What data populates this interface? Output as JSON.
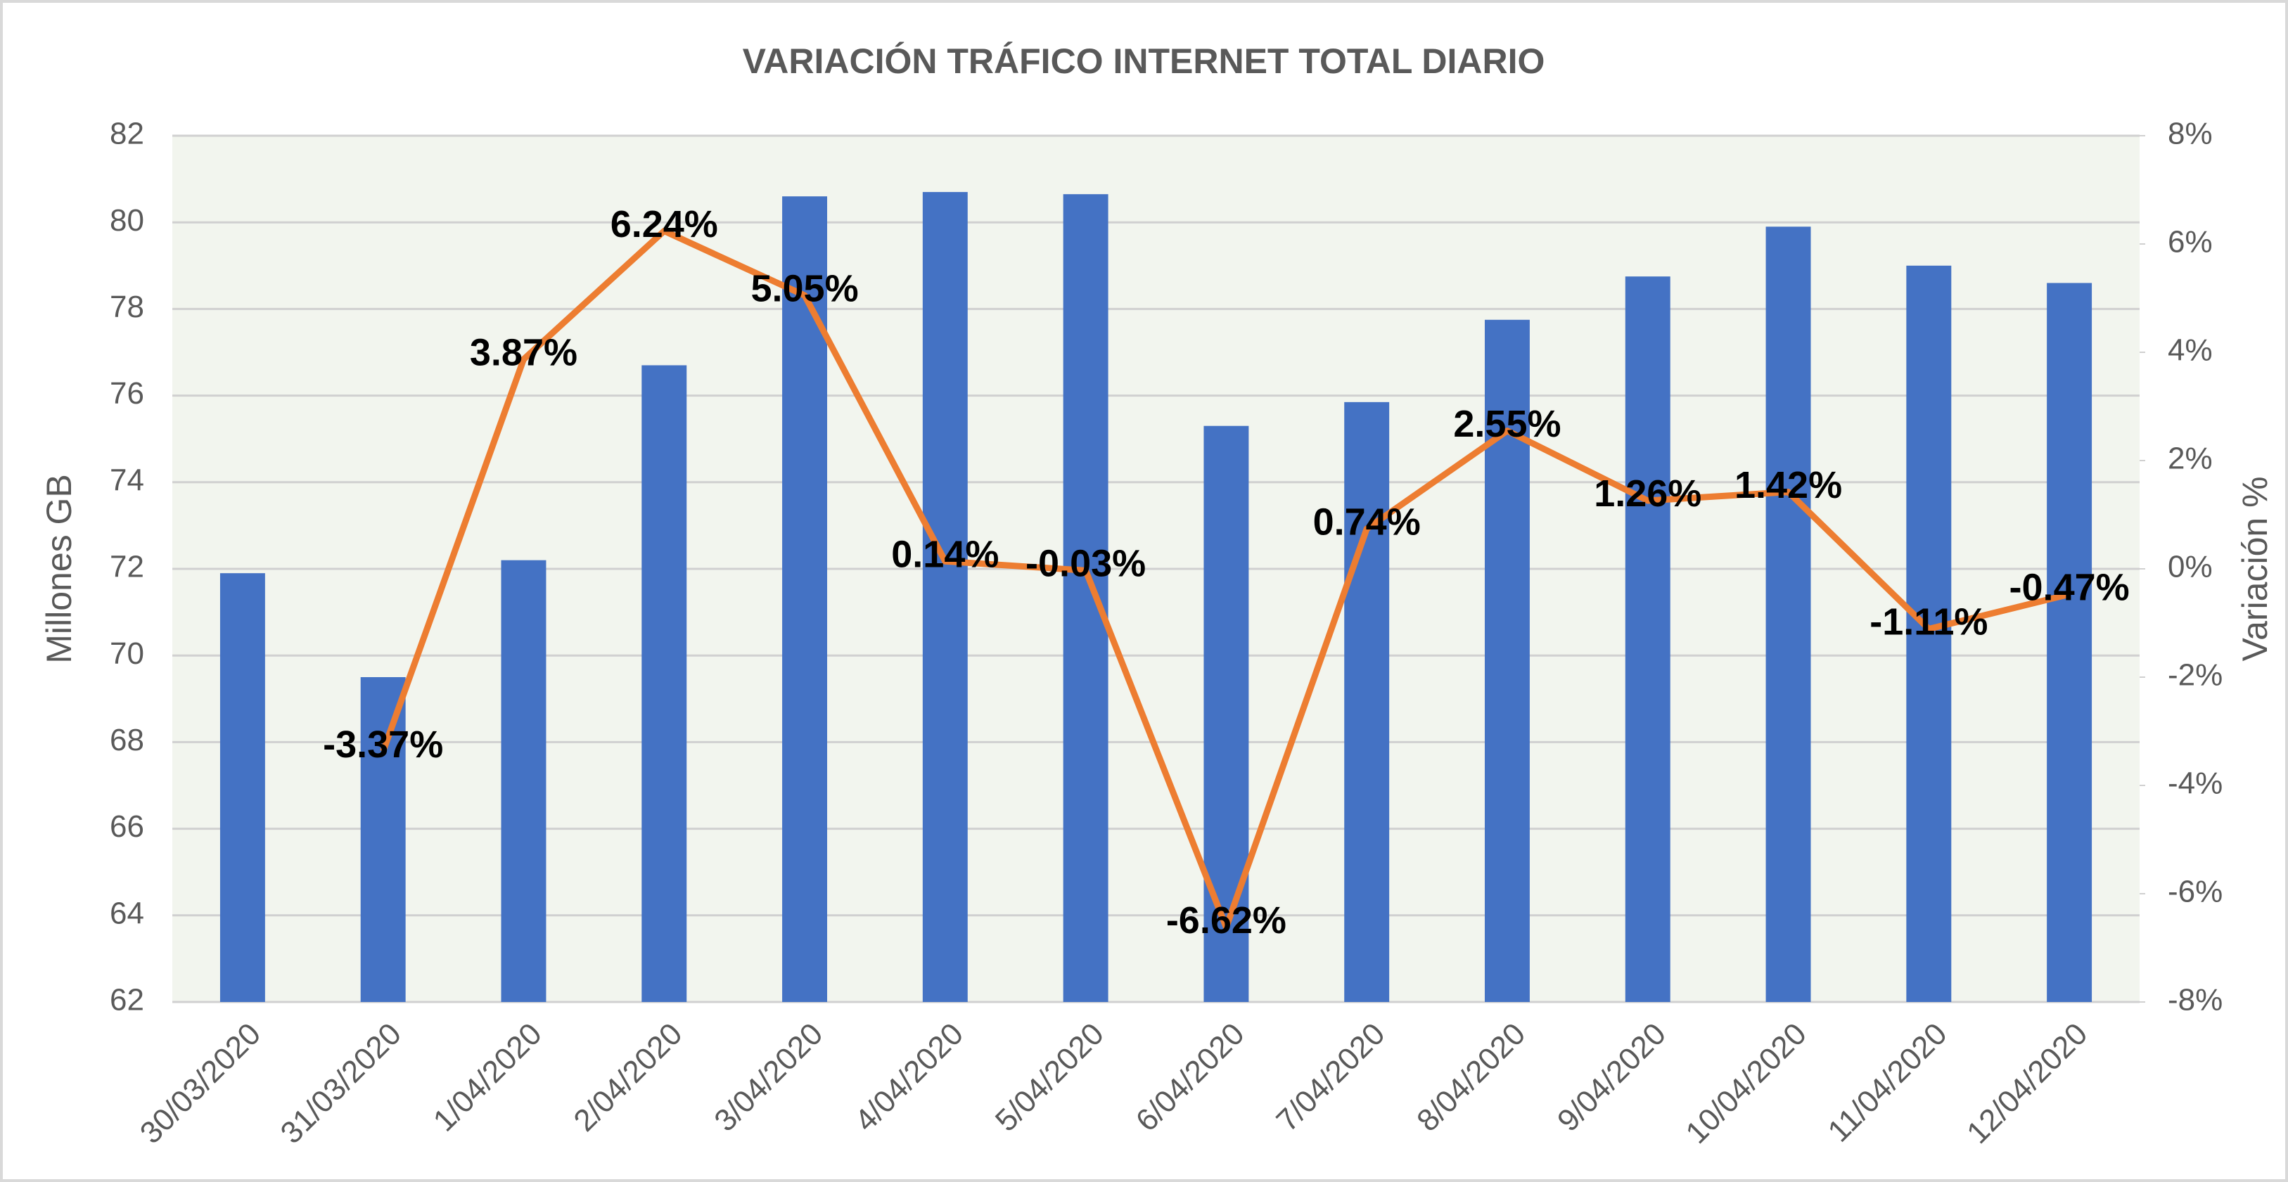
{
  "chart_data": {
    "type": "bar",
    "title": "VARIACIÓN TRÁFICO INTERNET TOTAL DIARIO",
    "y_label": "Millones GB",
    "y2_label": "Variación %",
    "categories": [
      "30/03/2020",
      "31/03/2020",
      "1/04/2020",
      "2/04/2020",
      "3/04/2020",
      "4/04/2020",
      "5/04/2020",
      "6/04/2020",
      "7/04/2020",
      "8/04/2020",
      "9/04/2020",
      "10/04/2020",
      "11/04/2020",
      "12/04/2020"
    ],
    "series": [
      {
        "name": "Millones GB",
        "type": "bar",
        "color": "#4472c4",
        "values": [
          71.9,
          69.5,
          72.2,
          76.7,
          80.6,
          80.7,
          80.65,
          75.3,
          75.85,
          77.75,
          78.75,
          79.9,
          79.0,
          78.6
        ]
      },
      {
        "name": "Variación %",
        "type": "line",
        "axis": "y2",
        "color": "#ed7d31",
        "values": [
          null,
          -3.37,
          3.87,
          6.24,
          5.05,
          0.14,
          -0.03,
          -6.62,
          0.74,
          2.55,
          1.26,
          1.42,
          -1.11,
          -0.47
        ],
        "value_labels": [
          null,
          "-3.37%",
          "3.87%",
          "6.24%",
          "5.05%",
          "0.14%",
          "-0.03%",
          "-6.62%",
          "0.74%",
          "2.55%",
          "1.26%",
          "1.42%",
          "-1.11%",
          "-0.47%"
        ]
      }
    ],
    "ylim": [
      62,
      82
    ],
    "yticks": [
      62,
      64,
      66,
      68,
      70,
      72,
      74,
      76,
      78,
      80,
      82
    ],
    "y2lim": [
      -8,
      8
    ],
    "y2ticks": [
      {
        "value": -8,
        "label": "-8%"
      },
      {
        "value": -6,
        "label": "-6%"
      },
      {
        "value": -4,
        "label": "-4%"
      },
      {
        "value": -2,
        "label": "-2%"
      },
      {
        "value": 0,
        "label": "0%"
      },
      {
        "value": 2,
        "label": "2%"
      },
      {
        "value": 4,
        "label": "4%"
      },
      {
        "value": 6,
        "label": "6%"
      },
      {
        "value": 8,
        "label": "8%"
      }
    ],
    "grid": true
  }
}
